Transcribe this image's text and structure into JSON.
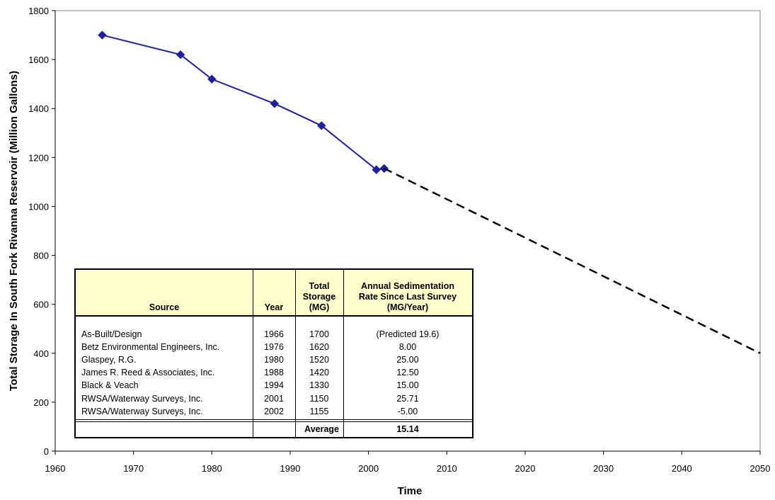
{
  "chart_data": {
    "type": "line",
    "xlabel": "Time",
    "ylabel": "Total Storage In South Fork Rivanna Reservoir (Million Gallons)",
    "xlim": [
      1960,
      2050
    ],
    "ylim": [
      0,
      1800
    ],
    "x_ticks": [
      1960,
      1970,
      1980,
      1990,
      2000,
      2010,
      2020,
      2030,
      2040,
      2050
    ],
    "y_ticks": [
      0,
      200,
      400,
      600,
      800,
      1000,
      1200,
      1400,
      1600,
      1800
    ],
    "grid": false,
    "series": [
      {
        "style": "solid",
        "marker": "diamond",
        "color": "#1f1fa3",
        "x": [
          1966,
          1976,
          1980,
          1988,
          1994,
          2001,
          2002
        ],
        "y": [
          1700,
          1620,
          1520,
          1420,
          1330,
          1150,
          1155
        ]
      },
      {
        "style": "dashed",
        "marker": "none",
        "color": "#000000",
        "x": [
          2002,
          2050
        ],
        "y": [
          1155,
          400
        ]
      }
    ]
  },
  "table": {
    "headers": {
      "source": "Source",
      "year": "Year",
      "storage": [
        "Total",
        "Storage",
        "(MG)"
      ],
      "rate": [
        "Annual Sedimentation",
        "Rate Since Last Survey",
        "(MG/Year)"
      ]
    },
    "rows": [
      {
        "source": "As-Built/Design",
        "year": "1966",
        "storage": "1700",
        "rate": "(Predicted 19.6)"
      },
      {
        "source": "Betz Environmental Engineers, Inc.",
        "year": "1976",
        "storage": "1620",
        "rate": "8.00"
      },
      {
        "source": "Glaspey, R.G.",
        "year": "1980",
        "storage": "1520",
        "rate": "25.00"
      },
      {
        "source": "James R. Reed & Associates, Inc.",
        "year": "1988",
        "storage": "1420",
        "rate": "12.50"
      },
      {
        "source": "Black & Veach",
        "year": "1994",
        "storage": "1330",
        "rate": "15.00"
      },
      {
        "source": "RWSA/Waterway Surveys, Inc.",
        "year": "2001",
        "storage": "1150",
        "rate": "25.71"
      },
      {
        "source": "RWSA/Waterway Surveys, Inc.",
        "year": "2002",
        "storage": "1155",
        "rate": "-5.00"
      }
    ],
    "average_label": "Average",
    "average_value": "15.14"
  }
}
